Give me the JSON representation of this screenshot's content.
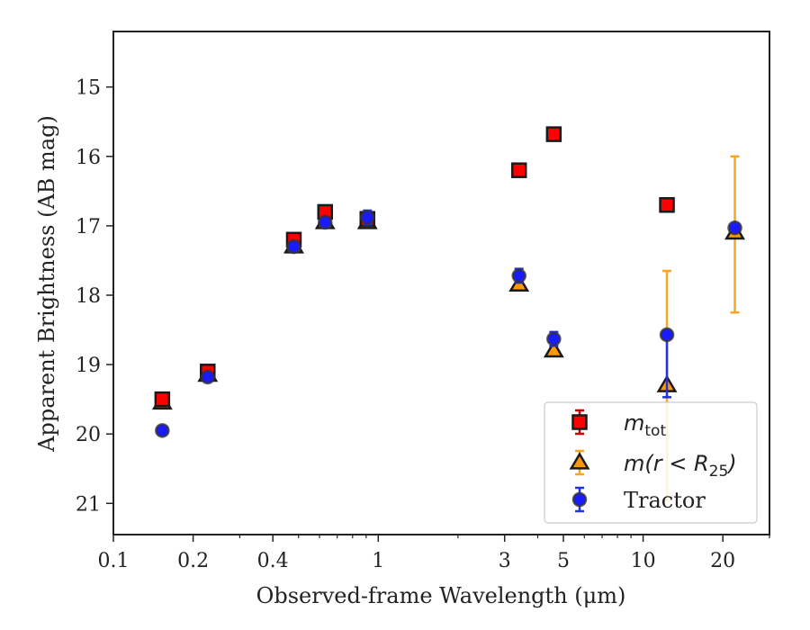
{
  "chart_data": {
    "type": "scatter",
    "xlabel": "Observed-frame Wavelength (μm)",
    "ylabel": "Apparent Brightness (AB mag)",
    "xscale": "log",
    "xlim": [
      0.1,
      30
    ],
    "ylim": [
      21.45,
      14.2
    ],
    "y_inverted": true,
    "x_ticks": [
      {
        "value": 0.1,
        "label": "0.1"
      },
      {
        "value": 0.2,
        "label": "0.2"
      },
      {
        "value": 0.4,
        "label": "0.4"
      },
      {
        "value": 1,
        "label": "1"
      },
      {
        "value": 3,
        "label": "3"
      },
      {
        "value": 5,
        "label": "5"
      },
      {
        "value": 10,
        "label": "10"
      },
      {
        "value": 20,
        "label": "20"
      }
    ],
    "y_ticks": [
      {
        "value": 15,
        "label": "15"
      },
      {
        "value": 16,
        "label": "16"
      },
      {
        "value": 17,
        "label": "17"
      },
      {
        "value": 18,
        "label": "18"
      },
      {
        "value": 19,
        "label": "19"
      },
      {
        "value": 20,
        "label": "20"
      },
      {
        "value": 21,
        "label": "21"
      }
    ],
    "legend_position": "bottom-right",
    "series": [
      {
        "name": "m_tot",
        "label_main": "m",
        "label_sub": "tot",
        "marker": "square",
        "color": "#ff0000",
        "edge_color": "#1a1a1a",
        "error_color": "#cc0000",
        "points": [
          {
            "x": 0.153,
            "y": 19.5,
            "err": 0.05
          },
          {
            "x": 0.227,
            "y": 19.1,
            "err": 0.05
          },
          {
            "x": 0.48,
            "y": 17.2,
            "err": 0.05
          },
          {
            "x": 0.63,
            "y": 16.8,
            "err": 0.05
          },
          {
            "x": 0.91,
            "y": 16.9,
            "err": 0.05
          },
          {
            "x": 3.4,
            "y": 16.2,
            "err": 0.03
          },
          {
            "x": 4.6,
            "y": 15.68,
            "err": 0.03
          },
          {
            "x": 12.3,
            "y": 16.7,
            "err": 0.03
          }
        ]
      },
      {
        "name": "m(r < R_25)",
        "label_main": "m(r < R",
        "label_sub": "25",
        "label_tail": ")",
        "marker": "triangle",
        "color": "#ff9900",
        "edge_color": "#1a1a1a",
        "error_color": "#f5a623",
        "points": [
          {
            "x": 0.153,
            "y": 19.55,
            "err": 0.05
          },
          {
            "x": 0.227,
            "y": 19.15,
            "err": 0.05
          },
          {
            "x": 0.48,
            "y": 17.3,
            "err": 0.05
          },
          {
            "x": 0.63,
            "y": 16.95,
            "err": 0.05
          },
          {
            "x": 0.91,
            "y": 16.95,
            "err": 0.05
          },
          {
            "x": 3.4,
            "y": 17.85,
            "err": 0.05
          },
          {
            "x": 4.6,
            "y": 18.8,
            "err": 0.05
          },
          {
            "x": 12.3,
            "y": 19.3,
            "err_low": 1.65,
            "err_high": 1.65
          },
          {
            "x": 22.2,
            "y": 17.1,
            "err_low": 1.1,
            "err_high": 1.15
          }
        ]
      },
      {
        "name": "Tractor",
        "label_main": "Tractor",
        "marker": "circle",
        "color": "#1a1aff",
        "edge_color": "#333333",
        "error_color": "#2233dd",
        "points": [
          {
            "x": 0.153,
            "y": 19.95,
            "err": 0.05
          },
          {
            "x": 0.227,
            "y": 19.18,
            "err": 0.05
          },
          {
            "x": 0.48,
            "y": 17.3,
            "err": 0.05
          },
          {
            "x": 0.63,
            "y": 16.95,
            "err": 0.05
          },
          {
            "x": 0.91,
            "y": 16.88,
            "err": 0.1
          },
          {
            "x": 3.4,
            "y": 17.72,
            "err": 0.1
          },
          {
            "x": 4.6,
            "y": 18.63,
            "err": 0.1
          },
          {
            "x": 12.3,
            "y": 18.57,
            "err_low": 0.05,
            "err_high": 0.9
          },
          {
            "x": 22.2,
            "y": 17.03,
            "err": 0.05
          }
        ]
      }
    ]
  }
}
